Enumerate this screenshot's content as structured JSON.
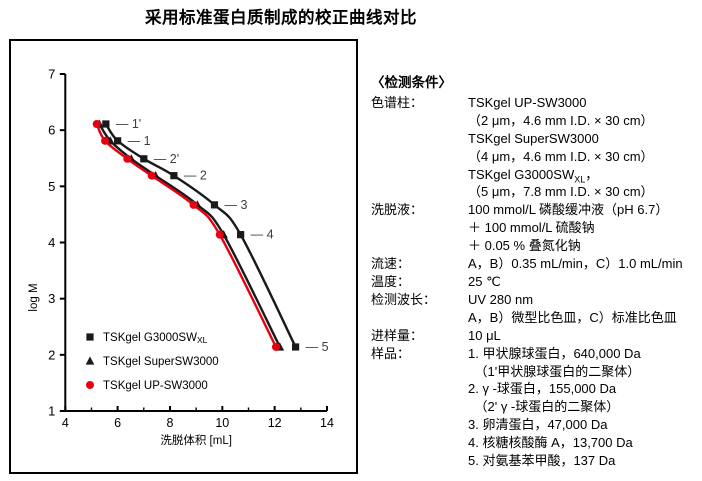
{
  "title": "采用标准蛋白质制成的校正曲线对比",
  "chart_data": {
    "type": "line",
    "title": "",
    "xlabel": "洗脱体积 [mL]",
    "ylabel": "log M",
    "xlim": [
      4,
      14
    ],
    "ylim": [
      1,
      7
    ],
    "x_ticks": [
      4,
      6,
      8,
      10,
      12,
      14
    ],
    "x_minor_ticks": [
      5,
      7,
      9,
      11,
      13
    ],
    "y_ticks": [
      1,
      2,
      3,
      4,
      5,
      6,
      7
    ],
    "grid": false,
    "legend_position": "inside bottom-left",
    "point_label_prefix": "— ",
    "point_labels": [
      "1'",
      "1",
      "2'",
      "2",
      "3",
      "4",
      "5"
    ],
    "log_m_values": [
      6.11,
      5.81,
      5.49,
      5.19,
      4.67,
      4.14,
      2.14
    ],
    "series": [
      {
        "name": "TSKgel G3000SW~XL~",
        "marker": "square",
        "color": "#1a1a1a",
        "elution_volume_mL": [
          5.55,
          6.0,
          7.0,
          8.15,
          9.7,
          10.7,
          12.8
        ],
        "labeled": true
      },
      {
        "name": "TSKgel SuperSW3000",
        "marker": "triangle",
        "color": "#1a1a1a",
        "elution_volume_mL": [
          5.3,
          5.72,
          6.52,
          7.45,
          9.05,
          10.05,
          12.2
        ],
        "labeled": false
      },
      {
        "name": "TSKgel UP-SW3000",
        "marker": "circle",
        "color": "#e60012",
        "elution_volume_mL": [
          5.2,
          5.52,
          6.37,
          7.3,
          8.9,
          9.9,
          12.05
        ],
        "labeled": false
      }
    ],
    "colors": {
      "curve_black": "#1a1a1a",
      "curve_red": "#e60012",
      "point_label_gray": "#3f3f3f"
    }
  },
  "conditions": {
    "heading": "〈检测条件〉",
    "rows": [
      {
        "label": "色谱柱：",
        "lines": [
          "TSKgel UP-SW3000",
          "（2 μm，4.6 mm I.D. × 30 cm）",
          "TSKgel SuperSW3000",
          "（4 μm，4.6 mm I.D. × 30 cm）",
          "TSKgel G3000SW~XL~，",
          "（5 μm，7.8 mm I.D. × 30 cm）"
        ]
      },
      {
        "label": "洗脱液：",
        "lines": [
          "100 mmol/L 磷酸缓冲液（pH 6.7）",
          "＋ 100 mmol/L 硫酸钠",
          "＋ 0.05 % 叠氮化钠"
        ]
      },
      {
        "label": "流速：",
        "lines": [
          "A，B）0.35 mL/min，C）1.0 mL/min"
        ]
      },
      {
        "label": "温度：",
        "lines": [
          "25 ℃"
        ]
      },
      {
        "label": "检测波长：",
        "lines": [
          "UV 280 nm",
          "A，B）微型比色皿，C）标准比色皿"
        ]
      },
      {
        "label": "进样量：",
        "lines": [
          "10 μL"
        ]
      },
      {
        "label": "样品：",
        "lines": [
          "1. 甲状腺球蛋白，640,000 Da",
          "　（1'甲状腺球蛋白的二聚体）",
          "2. γ -球蛋白，155,000 Da",
          "　（2' γ -球蛋白的二聚体）",
          "3. 卵清蛋白，47,000 Da",
          "4. 核糖核酸酶 A，13,700 Da",
          "5. 对氨基苯甲酸，137 Da"
        ]
      }
    ]
  }
}
